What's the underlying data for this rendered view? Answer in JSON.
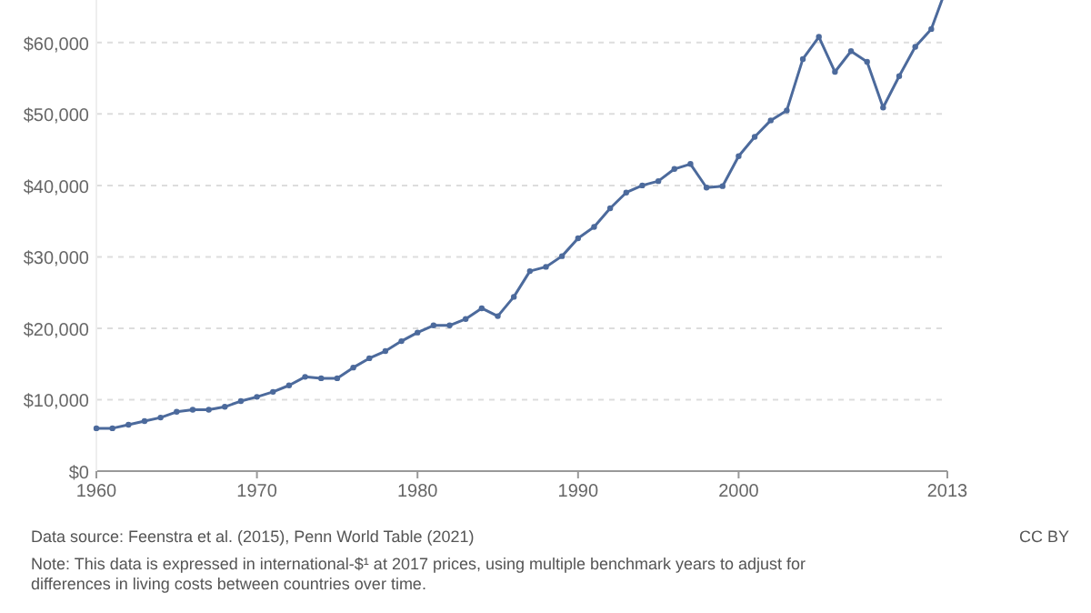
{
  "chart_data": {
    "type": "line",
    "x": [
      1960,
      1961,
      1962,
      1963,
      1964,
      1965,
      1966,
      1967,
      1968,
      1969,
      1970,
      1971,
      1972,
      1973,
      1974,
      1975,
      1976,
      1977,
      1978,
      1979,
      1980,
      1981,
      1982,
      1983,
      1984,
      1985,
      1986,
      1987,
      1988,
      1989,
      1990,
      1991,
      1992,
      1993,
      1994,
      1995,
      1996,
      1997,
      1998,
      1999,
      2000,
      2001,
      2002,
      2003,
      2004,
      2005,
      2006,
      2007,
      2008,
      2009,
      2010,
      2011,
      2012,
      2013
    ],
    "series": [
      {
        "color": "#4c6a9c",
        "values": [
          6000,
          6000,
          6500,
          7000,
          7500,
          8300,
          8600,
          8600,
          9000,
          9800,
          10400,
          11100,
          12000,
          13200,
          13000,
          13000,
          14500,
          15800,
          16800,
          18200,
          19400,
          20400,
          20400,
          21300,
          22800,
          21700,
          24400,
          28000,
          28600,
          30100,
          32600,
          34200,
          36800,
          39000,
          40000,
          40600,
          42300,
          43000,
          39700,
          39900,
          44100,
          46800,
          49100,
          50500,
          57700,
          60800,
          55900,
          58800,
          57300,
          50900,
          55300,
          59400,
          61900,
          68000
        ]
      }
    ],
    "xlim": [
      1960,
      2013
    ],
    "xticks": [
      1960,
      1970,
      1980,
      1990,
      2000,
      2013
    ],
    "ylim": [
      0,
      68000
    ],
    "yticks": [
      {
        "value": 0,
        "label": "$0"
      },
      {
        "value": 10000,
        "label": "$10,000"
      },
      {
        "value": 20000,
        "label": "$20,000"
      },
      {
        "value": 30000,
        "label": "$30,000"
      },
      {
        "value": 40000,
        "label": "$40,000"
      },
      {
        "value": 50000,
        "label": "$50,000"
      },
      {
        "value": 60000,
        "label": "$60,000"
      }
    ],
    "grid": "y",
    "marker": "circle",
    "line_style": "solid",
    "annotations": [
      "Data source: Feenstra et al. (2015), Penn World Table (2021)",
      "CC BY",
      "Note: This data is expressed in international-$¹ at 2017 prices, using multiple benchmark years to adjust for differences in living costs between countries over time."
    ]
  }
}
